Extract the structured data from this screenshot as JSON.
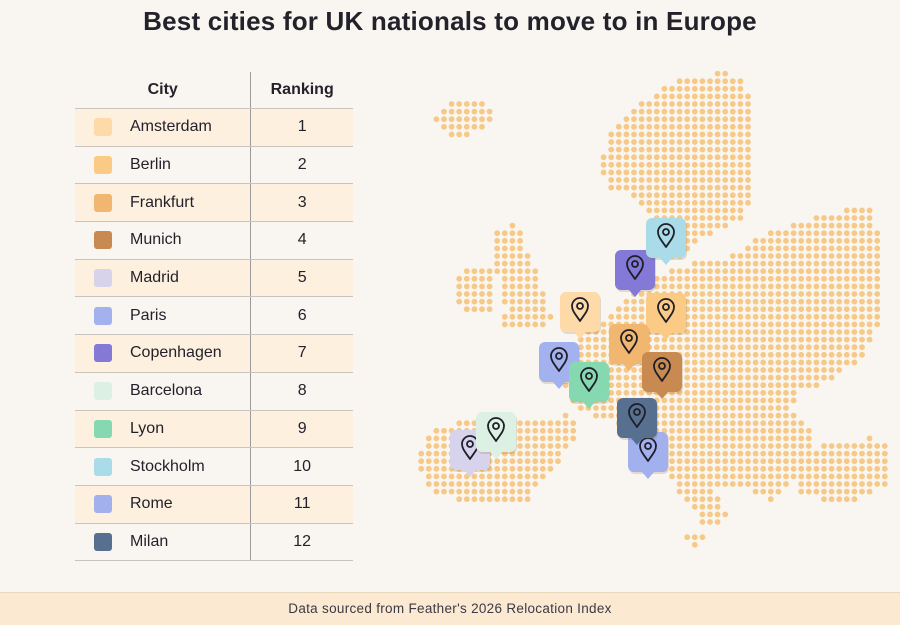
{
  "title": "Best cities for UK nationals to move to in Europe",
  "table": {
    "headers": [
      "City",
      "Ranking"
    ]
  },
  "chart_data": {
    "type": "table",
    "columns": [
      "City",
      "Ranking"
    ],
    "rows": [
      {
        "city": "Amsterdam",
        "ranking": 1,
        "color": "#fddaa8"
      },
      {
        "city": "Berlin",
        "ranking": 2,
        "color": "#fbcb86"
      },
      {
        "city": "Frankfurt",
        "ranking": 3,
        "color": "#f1b771"
      },
      {
        "city": "Munich",
        "ranking": 4,
        "color": "#c98a52"
      },
      {
        "city": "Madrid",
        "ranking": 5,
        "color": "#d8d3ec"
      },
      {
        "city": "Paris",
        "ranking": 6,
        "color": "#a3b2ee"
      },
      {
        "city": "Copenhagen",
        "ranking": 7,
        "color": "#8479d6"
      },
      {
        "city": "Barcelona",
        "ranking": 8,
        "color": "#dcf1e4"
      },
      {
        "city": "Lyon",
        "ranking": 9,
        "color": "#86d8b0"
      },
      {
        "city": "Stockholm",
        "ranking": 10,
        "color": "#a9dbe8"
      },
      {
        "city": "Rome",
        "ranking": 11,
        "color": "#a2b0ee"
      },
      {
        "city": "Milan",
        "ranking": 12,
        "color": "#57708f"
      }
    ]
  },
  "map": {
    "dot_color": "#f6c988",
    "pin_icon": "location-pin-icon"
  },
  "footer": "Data sourced from Feather's 2026 Relocation Index"
}
